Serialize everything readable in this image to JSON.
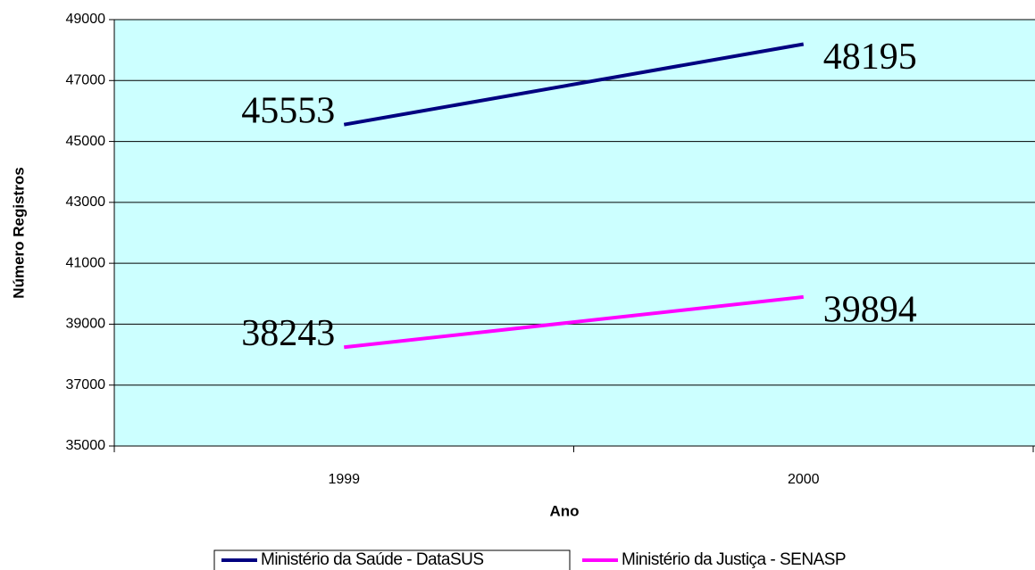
{
  "chart_data": {
    "type": "line",
    "x_label": "Ano",
    "y_label": "Número Registros",
    "categories": [
      "1999",
      "2000"
    ],
    "series": [
      {
        "name": "Ministério da Saúde - DataSUS",
        "color": "#000080",
        "values": [
          45553,
          48195
        ]
      },
      {
        "name": "Ministério da Justiça - SENASP",
        "color": "#ff00ff",
        "values": [
          38243,
          39894
        ]
      }
    ],
    "ylim": [
      35000,
      49000
    ],
    "yticks": [
      35000,
      37000,
      39000,
      41000,
      43000,
      45000,
      47000,
      49000
    ],
    "grid": true,
    "legend": "bottom",
    "background": "#ccffff"
  }
}
